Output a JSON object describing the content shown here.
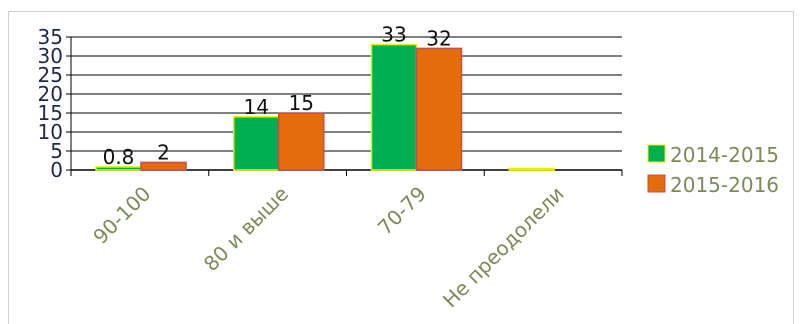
{
  "chart_data": {
    "type": "bar",
    "categories": [
      "90-100",
      "80 и выше",
      "70-79",
      "Не преодолели"
    ],
    "series": [
      {
        "name": "2014-2015",
        "values": [
          0.8,
          14,
          33,
          0
        ],
        "color": "#00b050",
        "border": "#e8f000"
      },
      {
        "name": "2015-2016",
        "values": [
          2,
          15,
          32,
          null
        ],
        "color": "#e46c0a",
        "border": "#c0504d"
      }
    ],
    "data_labels": [
      [
        "0.8",
        "14",
        "33",
        ""
      ],
      [
        "2",
        "15",
        "32",
        ""
      ]
    ],
    "yticks": [
      "0",
      "5",
      "10",
      "15",
      "20",
      "25",
      "30",
      "35"
    ],
    "ylim": [
      0,
      35
    ],
    "grid": true,
    "legend_position": "right",
    "title": "",
    "xlabel": "",
    "ylabel": ""
  }
}
